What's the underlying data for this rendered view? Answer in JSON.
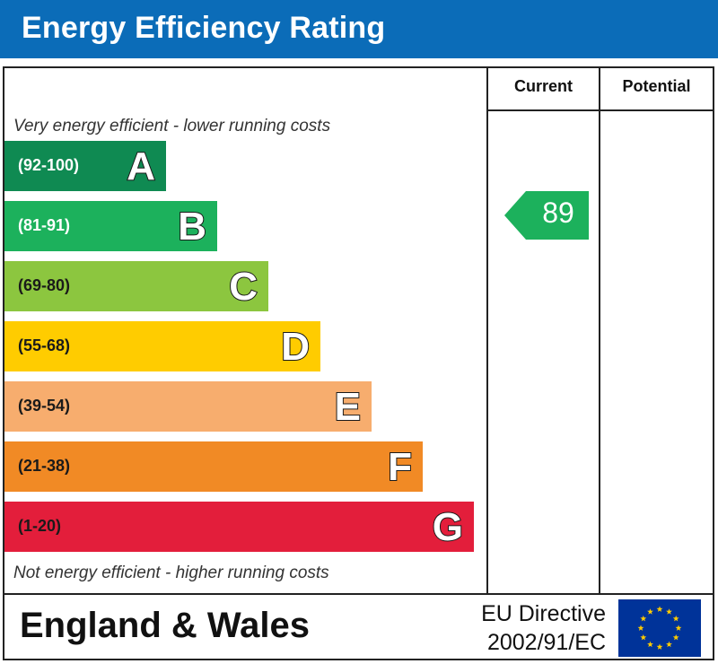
{
  "title": "Energy Efficiency Rating",
  "columns": {
    "current": "Current",
    "potential": "Potential"
  },
  "notes": {
    "top": "Very energy efficient - lower running costs",
    "bottom": "Not energy efficient - higher running costs"
  },
  "bands": [
    {
      "range": "(92-100)",
      "letter": "A",
      "color": "#0f8a52",
      "range_color": "#ffffff"
    },
    {
      "range": "(81-91)",
      "letter": "B",
      "color": "#1cb15c",
      "range_color": "#ffffff"
    },
    {
      "range": "(69-80)",
      "letter": "C",
      "color": "#8cc63f",
      "range_color": "#1a1a1a"
    },
    {
      "range": "(55-68)",
      "letter": "D",
      "color": "#ffcc00",
      "range_color": "#1a1a1a"
    },
    {
      "range": "(39-54)",
      "letter": "E",
      "color": "#f7ad6e",
      "range_color": "#1a1a1a"
    },
    {
      "range": "(21-38)",
      "letter": "F",
      "color": "#f18a25",
      "range_color": "#1a1a1a"
    },
    {
      "range": "(1-20)",
      "letter": "G",
      "color": "#e31e3b",
      "range_color": "#1a1a1a"
    }
  ],
  "current": {
    "value": "89",
    "band": "B",
    "color": "#1cb15c"
  },
  "potential": {
    "value": ""
  },
  "footer": {
    "region": "England & Wales",
    "directive_line1": "EU Directive",
    "directive_line2": "2002/91/EC"
  },
  "flag_colors": {
    "background": "#003399",
    "stars": "#ffcc00"
  },
  "chart_data": {
    "type": "bar",
    "title": "Energy Efficiency Rating",
    "categories": [
      "A",
      "B",
      "C",
      "D",
      "E",
      "F",
      "G"
    ],
    "ranges": [
      "(92-100)",
      "(81-91)",
      "(69-80)",
      "(55-68)",
      "(39-54)",
      "(21-38)",
      "(1-20)"
    ],
    "series": [
      {
        "name": "Current",
        "values": [
          null,
          89,
          null,
          null,
          null,
          null,
          null
        ]
      }
    ]
  }
}
